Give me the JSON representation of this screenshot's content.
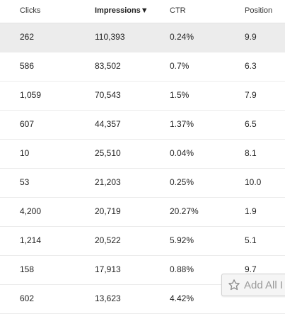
{
  "table": {
    "columns": [
      {
        "label": "Clicks"
      },
      {
        "label": "Impressions▼"
      },
      {
        "label": "CTR"
      },
      {
        "label": "Position"
      }
    ],
    "rows": [
      {
        "clicks": "262",
        "impressions": "110,393",
        "ctr": "0.24%",
        "position": "9.9"
      },
      {
        "clicks": "586",
        "impressions": "83,502",
        "ctr": "0.7%",
        "position": "6.3"
      },
      {
        "clicks": "1,059",
        "impressions": "70,543",
        "ctr": "1.5%",
        "position": "7.9"
      },
      {
        "clicks": "607",
        "impressions": "44,357",
        "ctr": "1.37%",
        "position": "6.5"
      },
      {
        "clicks": "10",
        "impressions": "25,510",
        "ctr": "0.04%",
        "position": "8.1"
      },
      {
        "clicks": "53",
        "impressions": "21,203",
        "ctr": "0.25%",
        "position": "10.0"
      },
      {
        "clicks": "4,200",
        "impressions": "20,719",
        "ctr": "20.27%",
        "position": "1.9"
      },
      {
        "clicks": "1,214",
        "impressions": "20,522",
        "ctr": "5.92%",
        "position": "5.1"
      },
      {
        "clicks": "158",
        "impressions": "17,913",
        "ctr": "0.88%",
        "position": "9.7"
      },
      {
        "clicks": "602",
        "impressions": "13,623",
        "ctr": "4.42%",
        "position": ""
      }
    ]
  },
  "add_all_button": {
    "label": "Add All I",
    "icon": "star-icon"
  }
}
